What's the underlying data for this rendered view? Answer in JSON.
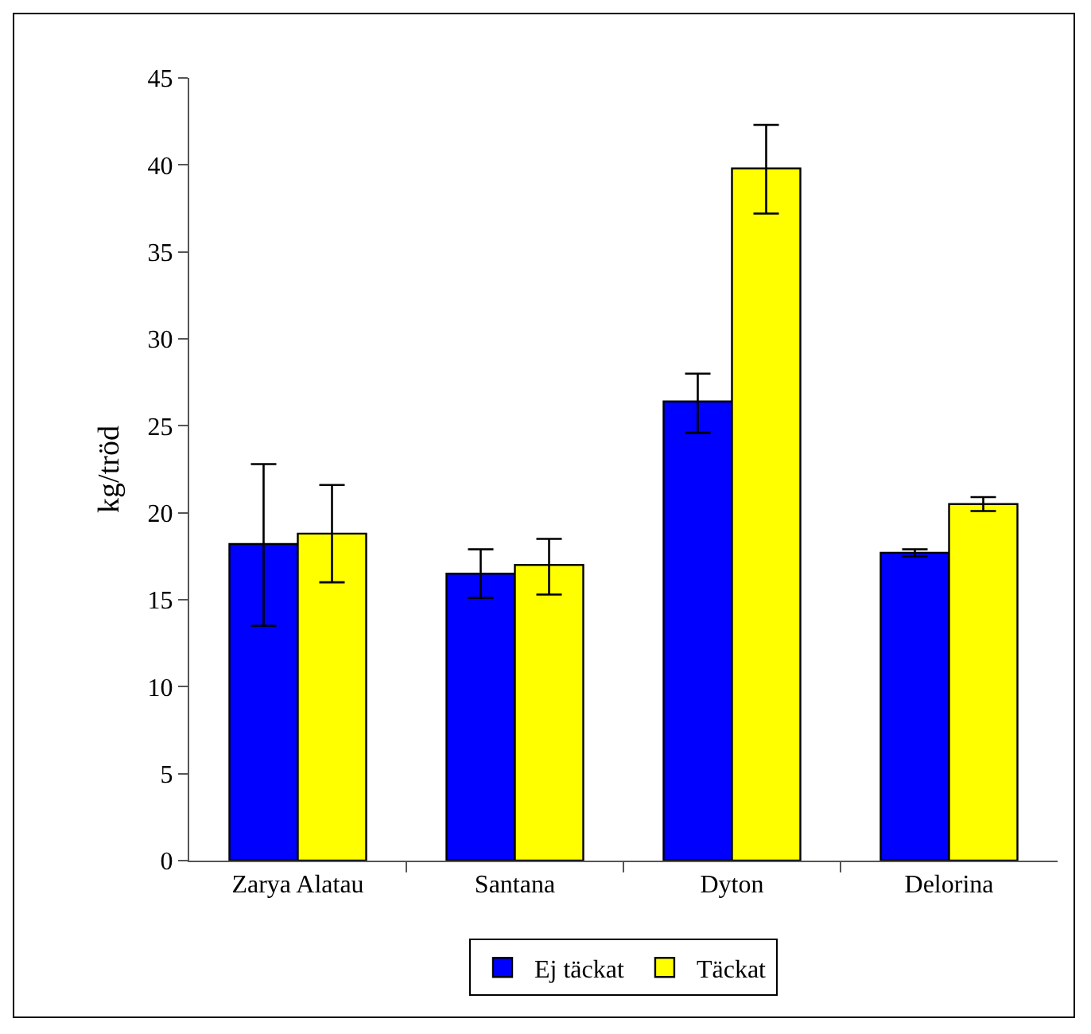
{
  "chart_data": {
    "type": "bar",
    "ylabel": "kg/tröd",
    "categories": [
      "Zarya Alatau",
      "Santana",
      "Dyton",
      "Delorina"
    ],
    "series": [
      {
        "name": "Ej täckat",
        "color": "#0000ff",
        "values": [
          18.2,
          16.5,
          26.4,
          17.7
        ],
        "errors": [
          [
            13.5,
            22.8
          ],
          [
            15.1,
            17.9
          ],
          [
            24.6,
            28.0
          ],
          [
            17.5,
            17.9
          ]
        ]
      },
      {
        "name": "Täckat",
        "color": "#ffff00",
        "values": [
          18.8,
          17.0,
          39.8,
          20.5
        ],
        "errors": [
          [
            16.0,
            21.6
          ],
          [
            15.3,
            18.5
          ],
          [
            37.2,
            42.3
          ],
          [
            20.1,
            20.9
          ]
        ]
      }
    ],
    "ylim": [
      0,
      45
    ],
    "yticks": [
      0,
      5,
      10,
      15,
      20,
      25,
      30,
      35,
      40,
      45
    ],
    "grid": false,
    "legend": "bottom"
  }
}
